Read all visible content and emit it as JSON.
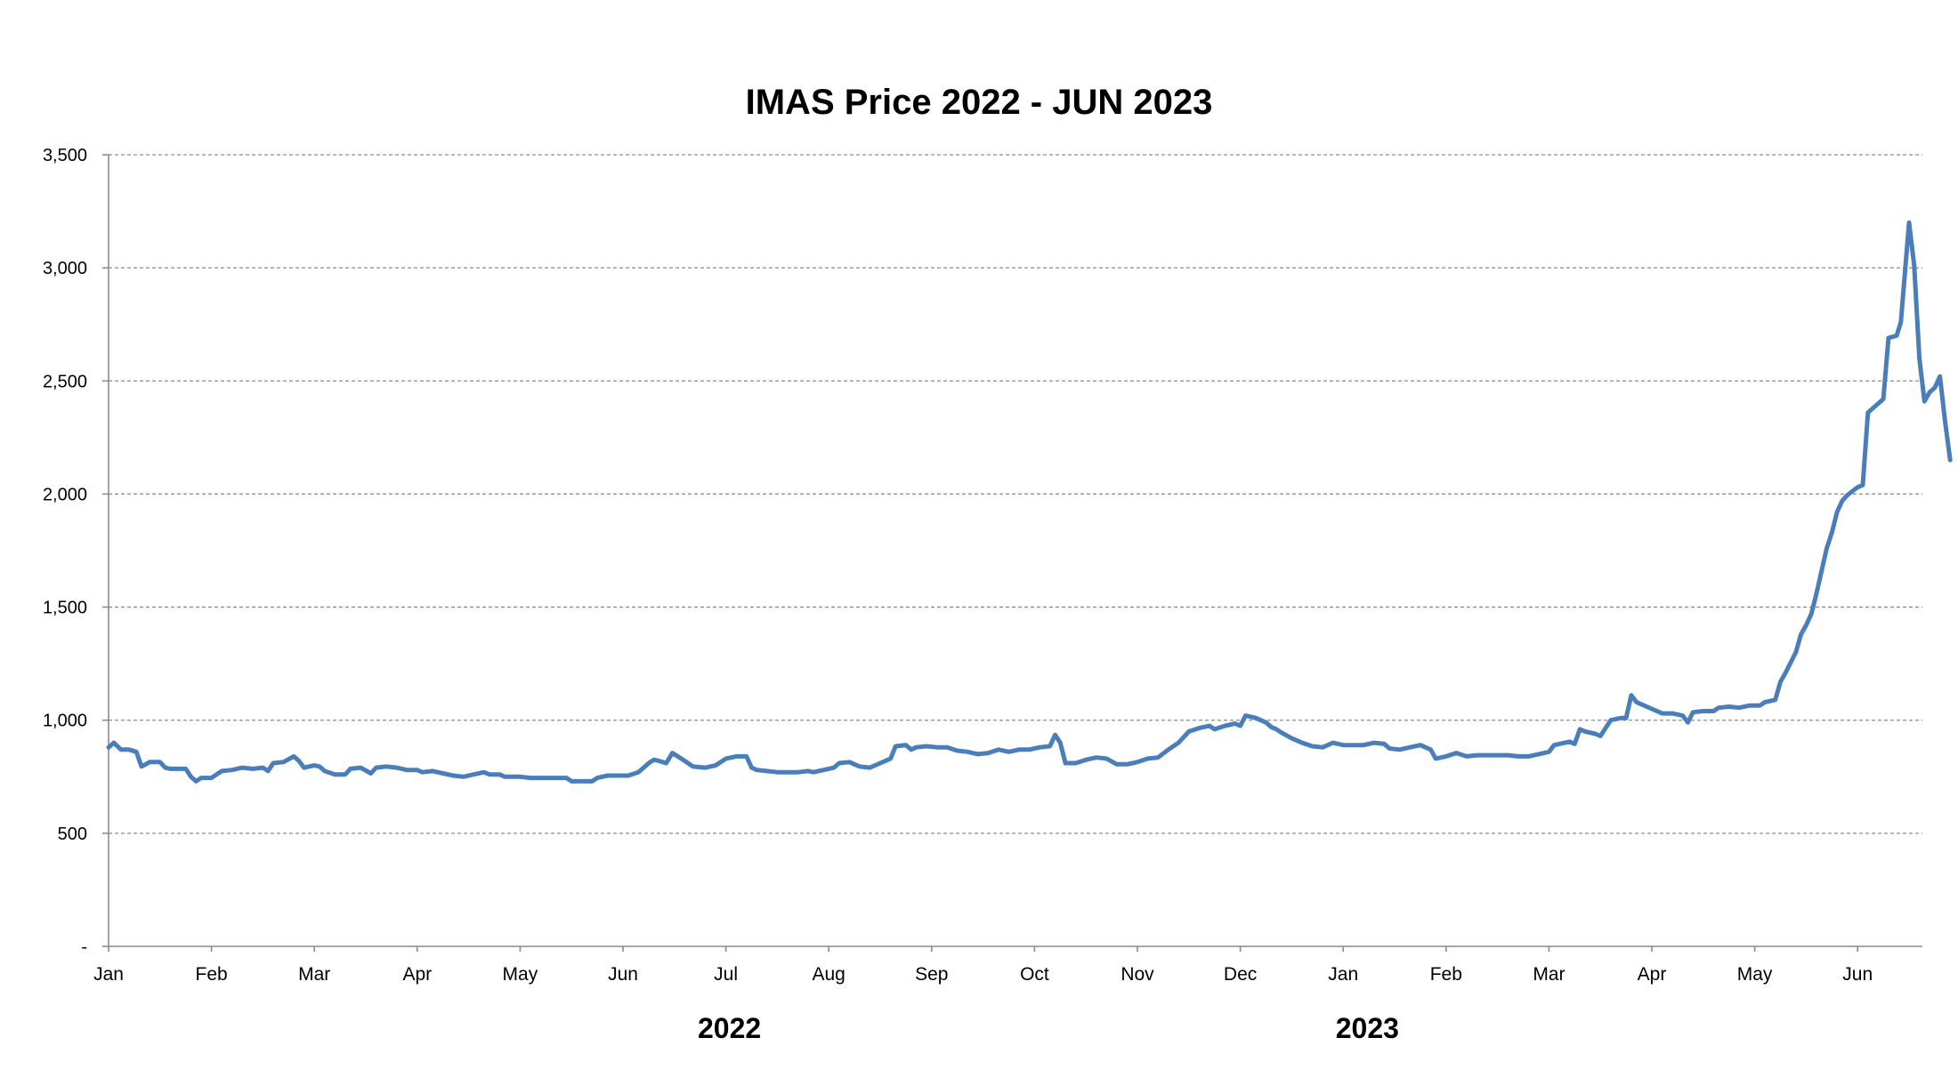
{
  "colors": {
    "line": "#4a7ebb",
    "grid": "#8c8c8c",
    "background": "#ffffff"
  },
  "chart_data": {
    "type": "line",
    "title": "IMAS Price 2022 - JUN 2023",
    "xlabel": "",
    "ylabel": "",
    "ylim": [
      0,
      3500
    ],
    "xlim": [
      0,
      17.9
    ],
    "yticks": [
      {
        "value": 0,
        "label": "-"
      },
      {
        "value": 500,
        "label": "500"
      },
      {
        "value": 1000,
        "label": "1,000"
      },
      {
        "value": 1500,
        "label": "1,500"
      },
      {
        "value": 2000,
        "label": "2,000"
      },
      {
        "value": 2500,
        "label": "2,500"
      },
      {
        "value": 3000,
        "label": "3,000"
      },
      {
        "value": 3500,
        "label": "3,500"
      }
    ],
    "xticks": [
      {
        "value": 0,
        "label": "Jan"
      },
      {
        "value": 1,
        "label": "Feb"
      },
      {
        "value": 2,
        "label": "Mar"
      },
      {
        "value": 3,
        "label": "Apr"
      },
      {
        "value": 4,
        "label": "May"
      },
      {
        "value": 5,
        "label": "Jun"
      },
      {
        "value": 6,
        "label": "Jul"
      },
      {
        "value": 7,
        "label": "Aug"
      },
      {
        "value": 8,
        "label": "Sep"
      },
      {
        "value": 9,
        "label": "Oct"
      },
      {
        "value": 10,
        "label": "Nov"
      },
      {
        "value": 11,
        "label": "Dec"
      },
      {
        "value": 12,
        "label": "Jan"
      },
      {
        "value": 13,
        "label": "Feb"
      },
      {
        "value": 14,
        "label": "Mar"
      },
      {
        "value": 15,
        "label": "Apr"
      },
      {
        "value": 16,
        "label": "May"
      },
      {
        "value": 17,
        "label": "Jun"
      }
    ],
    "year_labels": [
      {
        "value": 6,
        "label": "2022"
      },
      {
        "value": 12.2,
        "label": "2023"
      }
    ],
    "grid": true,
    "legend": "none",
    "series": [
      {
        "points": [
          [
            0.0,
            880
          ],
          [
            0.05,
            900
          ],
          [
            0.12,
            870
          ],
          [
            0.2,
            870
          ],
          [
            0.27,
            860
          ],
          [
            0.32,
            795
          ],
          [
            0.4,
            815
          ],
          [
            0.5,
            815
          ],
          [
            0.55,
            790
          ],
          [
            0.6,
            785
          ],
          [
            0.75,
            785
          ],
          [
            0.8,
            750
          ],
          [
            0.85,
            730
          ],
          [
            0.9,
            745
          ],
          [
            1.0,
            745
          ],
          [
            1.05,
            760
          ],
          [
            1.1,
            775
          ],
          [
            1.2,
            780
          ],
          [
            1.3,
            790
          ],
          [
            1.4,
            785
          ],
          [
            1.5,
            790
          ],
          [
            1.55,
            775
          ],
          [
            1.6,
            810
          ],
          [
            1.7,
            815
          ],
          [
            1.8,
            840
          ],
          [
            1.85,
            820
          ],
          [
            1.9,
            790
          ],
          [
            2.0,
            800
          ],
          [
            2.05,
            795
          ],
          [
            2.1,
            775
          ],
          [
            2.2,
            760
          ],
          [
            2.3,
            760
          ],
          [
            2.35,
            785
          ],
          [
            2.45,
            790
          ],
          [
            2.55,
            765
          ],
          [
            2.6,
            790
          ],
          [
            2.7,
            795
          ],
          [
            2.8,
            790
          ],
          [
            2.9,
            780
          ],
          [
            3.0,
            780
          ],
          [
            3.05,
            770
          ],
          [
            3.15,
            775
          ],
          [
            3.25,
            765
          ],
          [
            3.35,
            755
          ],
          [
            3.45,
            750
          ],
          [
            3.55,
            760
          ],
          [
            3.65,
            770
          ],
          [
            3.7,
            760
          ],
          [
            3.8,
            760
          ],
          [
            3.85,
            750
          ],
          [
            3.95,
            750
          ],
          [
            4.0,
            750
          ],
          [
            4.1,
            745
          ],
          [
            4.2,
            745
          ],
          [
            4.3,
            745
          ],
          [
            4.4,
            745
          ],
          [
            4.45,
            745
          ],
          [
            4.5,
            730
          ],
          [
            4.6,
            730
          ],
          [
            4.7,
            730
          ],
          [
            4.75,
            745
          ],
          [
            4.85,
            755
          ],
          [
            4.95,
            755
          ],
          [
            5.05,
            755
          ],
          [
            5.15,
            770
          ],
          [
            5.25,
            810
          ],
          [
            5.3,
            825
          ],
          [
            5.35,
            820
          ],
          [
            5.42,
            810
          ],
          [
            5.48,
            855
          ],
          [
            5.55,
            835
          ],
          [
            5.6,
            820
          ],
          [
            5.68,
            795
          ],
          [
            5.8,
            790
          ],
          [
            5.9,
            800
          ],
          [
            6.0,
            830
          ],
          [
            6.1,
            840
          ],
          [
            6.2,
            840
          ],
          [
            6.25,
            790
          ],
          [
            6.3,
            780
          ],
          [
            6.4,
            775
          ],
          [
            6.5,
            770
          ],
          [
            6.6,
            770
          ],
          [
            6.7,
            770
          ],
          [
            6.8,
            775
          ],
          [
            6.85,
            770
          ],
          [
            6.95,
            780
          ],
          [
            7.05,
            790
          ],
          [
            7.1,
            810
          ],
          [
            7.2,
            815
          ],
          [
            7.3,
            795
          ],
          [
            7.4,
            790
          ],
          [
            7.5,
            810
          ],
          [
            7.6,
            830
          ],
          [
            7.65,
            885
          ],
          [
            7.75,
            890
          ],
          [
            7.8,
            870
          ],
          [
            7.85,
            880
          ],
          [
            7.95,
            885
          ],
          [
            8.05,
            880
          ],
          [
            8.15,
            880
          ],
          [
            8.25,
            865
          ],
          [
            8.35,
            860
          ],
          [
            8.45,
            850
          ],
          [
            8.55,
            855
          ],
          [
            8.65,
            870
          ],
          [
            8.75,
            860
          ],
          [
            8.85,
            870
          ],
          [
            8.95,
            870
          ],
          [
            9.05,
            880
          ],
          [
            9.15,
            885
          ],
          [
            9.2,
            935
          ],
          [
            9.25,
            900
          ],
          [
            9.3,
            810
          ],
          [
            9.4,
            810
          ],
          [
            9.5,
            825
          ],
          [
            9.6,
            835
          ],
          [
            9.7,
            830
          ],
          [
            9.8,
            805
          ],
          [
            9.9,
            805
          ],
          [
            10.0,
            815
          ],
          [
            10.1,
            830
          ],
          [
            10.2,
            835
          ],
          [
            10.3,
            870
          ],
          [
            10.4,
            900
          ],
          [
            10.5,
            950
          ],
          [
            10.6,
            965
          ],
          [
            10.7,
            975
          ],
          [
            10.75,
            960
          ],
          [
            10.85,
            975
          ],
          [
            10.95,
            985
          ],
          [
            11.0,
            975
          ],
          [
            11.05,
            1020
          ],
          [
            11.15,
            1010
          ],
          [
            11.25,
            990
          ],
          [
            11.3,
            970
          ],
          [
            11.35,
            960
          ],
          [
            11.4,
            945
          ],
          [
            11.5,
            920
          ],
          [
            11.6,
            900
          ],
          [
            11.7,
            885
          ],
          [
            11.8,
            880
          ],
          [
            11.9,
            900
          ],
          [
            12.0,
            890
          ],
          [
            12.1,
            890
          ],
          [
            12.2,
            890
          ],
          [
            12.3,
            900
          ],
          [
            12.4,
            895
          ],
          [
            12.45,
            875
          ],
          [
            12.55,
            870
          ],
          [
            12.65,
            880
          ],
          [
            12.75,
            890
          ],
          [
            12.85,
            870
          ],
          [
            12.9,
            830
          ],
          [
            13.0,
            840
          ],
          [
            13.1,
            855
          ],
          [
            13.2,
            840
          ],
          [
            13.3,
            845
          ],
          [
            13.4,
            845
          ],
          [
            13.5,
            845
          ],
          [
            13.6,
            845
          ],
          [
            13.7,
            840
          ],
          [
            13.8,
            840
          ],
          [
            13.9,
            850
          ],
          [
            14.0,
            860
          ],
          [
            14.05,
            890
          ],
          [
            14.1,
            895
          ],
          [
            14.2,
            905
          ],
          [
            14.25,
            895
          ],
          [
            14.3,
            960
          ],
          [
            14.35,
            950
          ],
          [
            14.45,
            940
          ],
          [
            14.5,
            930
          ],
          [
            14.6,
            1000
          ],
          [
            14.7,
            1010
          ],
          [
            14.75,
            1010
          ],
          [
            14.8,
            1110
          ],
          [
            14.85,
            1080
          ],
          [
            14.9,
            1070
          ],
          [
            15.0,
            1050
          ],
          [
            15.1,
            1030
          ],
          [
            15.2,
            1030
          ],
          [
            15.3,
            1020
          ],
          [
            15.35,
            990
          ],
          [
            15.4,
            1035
          ],
          [
            15.5,
            1040
          ],
          [
            15.6,
            1040
          ],
          [
            15.65,
            1055
          ],
          [
            15.75,
            1060
          ],
          [
            15.85,
            1055
          ],
          [
            15.95,
            1065
          ],
          [
            16.05,
            1065
          ],
          [
            16.1,
            1080
          ],
          [
            16.2,
            1090
          ],
          [
            16.25,
            1170
          ],
          [
            16.3,
            1210
          ],
          [
            16.4,
            1300
          ],
          [
            16.45,
            1380
          ],
          [
            16.5,
            1420
          ],
          [
            16.55,
            1470
          ],
          [
            16.6,
            1560
          ],
          [
            16.65,
            1660
          ],
          [
            16.7,
            1760
          ],
          [
            16.75,
            1830
          ],
          [
            16.8,
            1920
          ],
          [
            16.85,
            1970
          ],
          [
            16.9,
            1995
          ],
          [
            17.0,
            2030
          ],
          [
            17.05,
            2040
          ],
          [
            17.1,
            2360
          ],
          [
            17.2,
            2400
          ],
          [
            17.25,
            2420
          ],
          [
            17.3,
            2690
          ],
          [
            17.38,
            2700
          ],
          [
            17.42,
            2760
          ],
          [
            17.5,
            3200
          ],
          [
            17.55,
            3010
          ],
          [
            17.6,
            2600
          ],
          [
            17.65,
            2410
          ],
          [
            17.7,
            2450
          ],
          [
            17.75,
            2470
          ],
          [
            17.8,
            2520
          ],
          [
            17.85,
            2320
          ],
          [
            17.9,
            2150
          ]
        ]
      }
    ]
  }
}
